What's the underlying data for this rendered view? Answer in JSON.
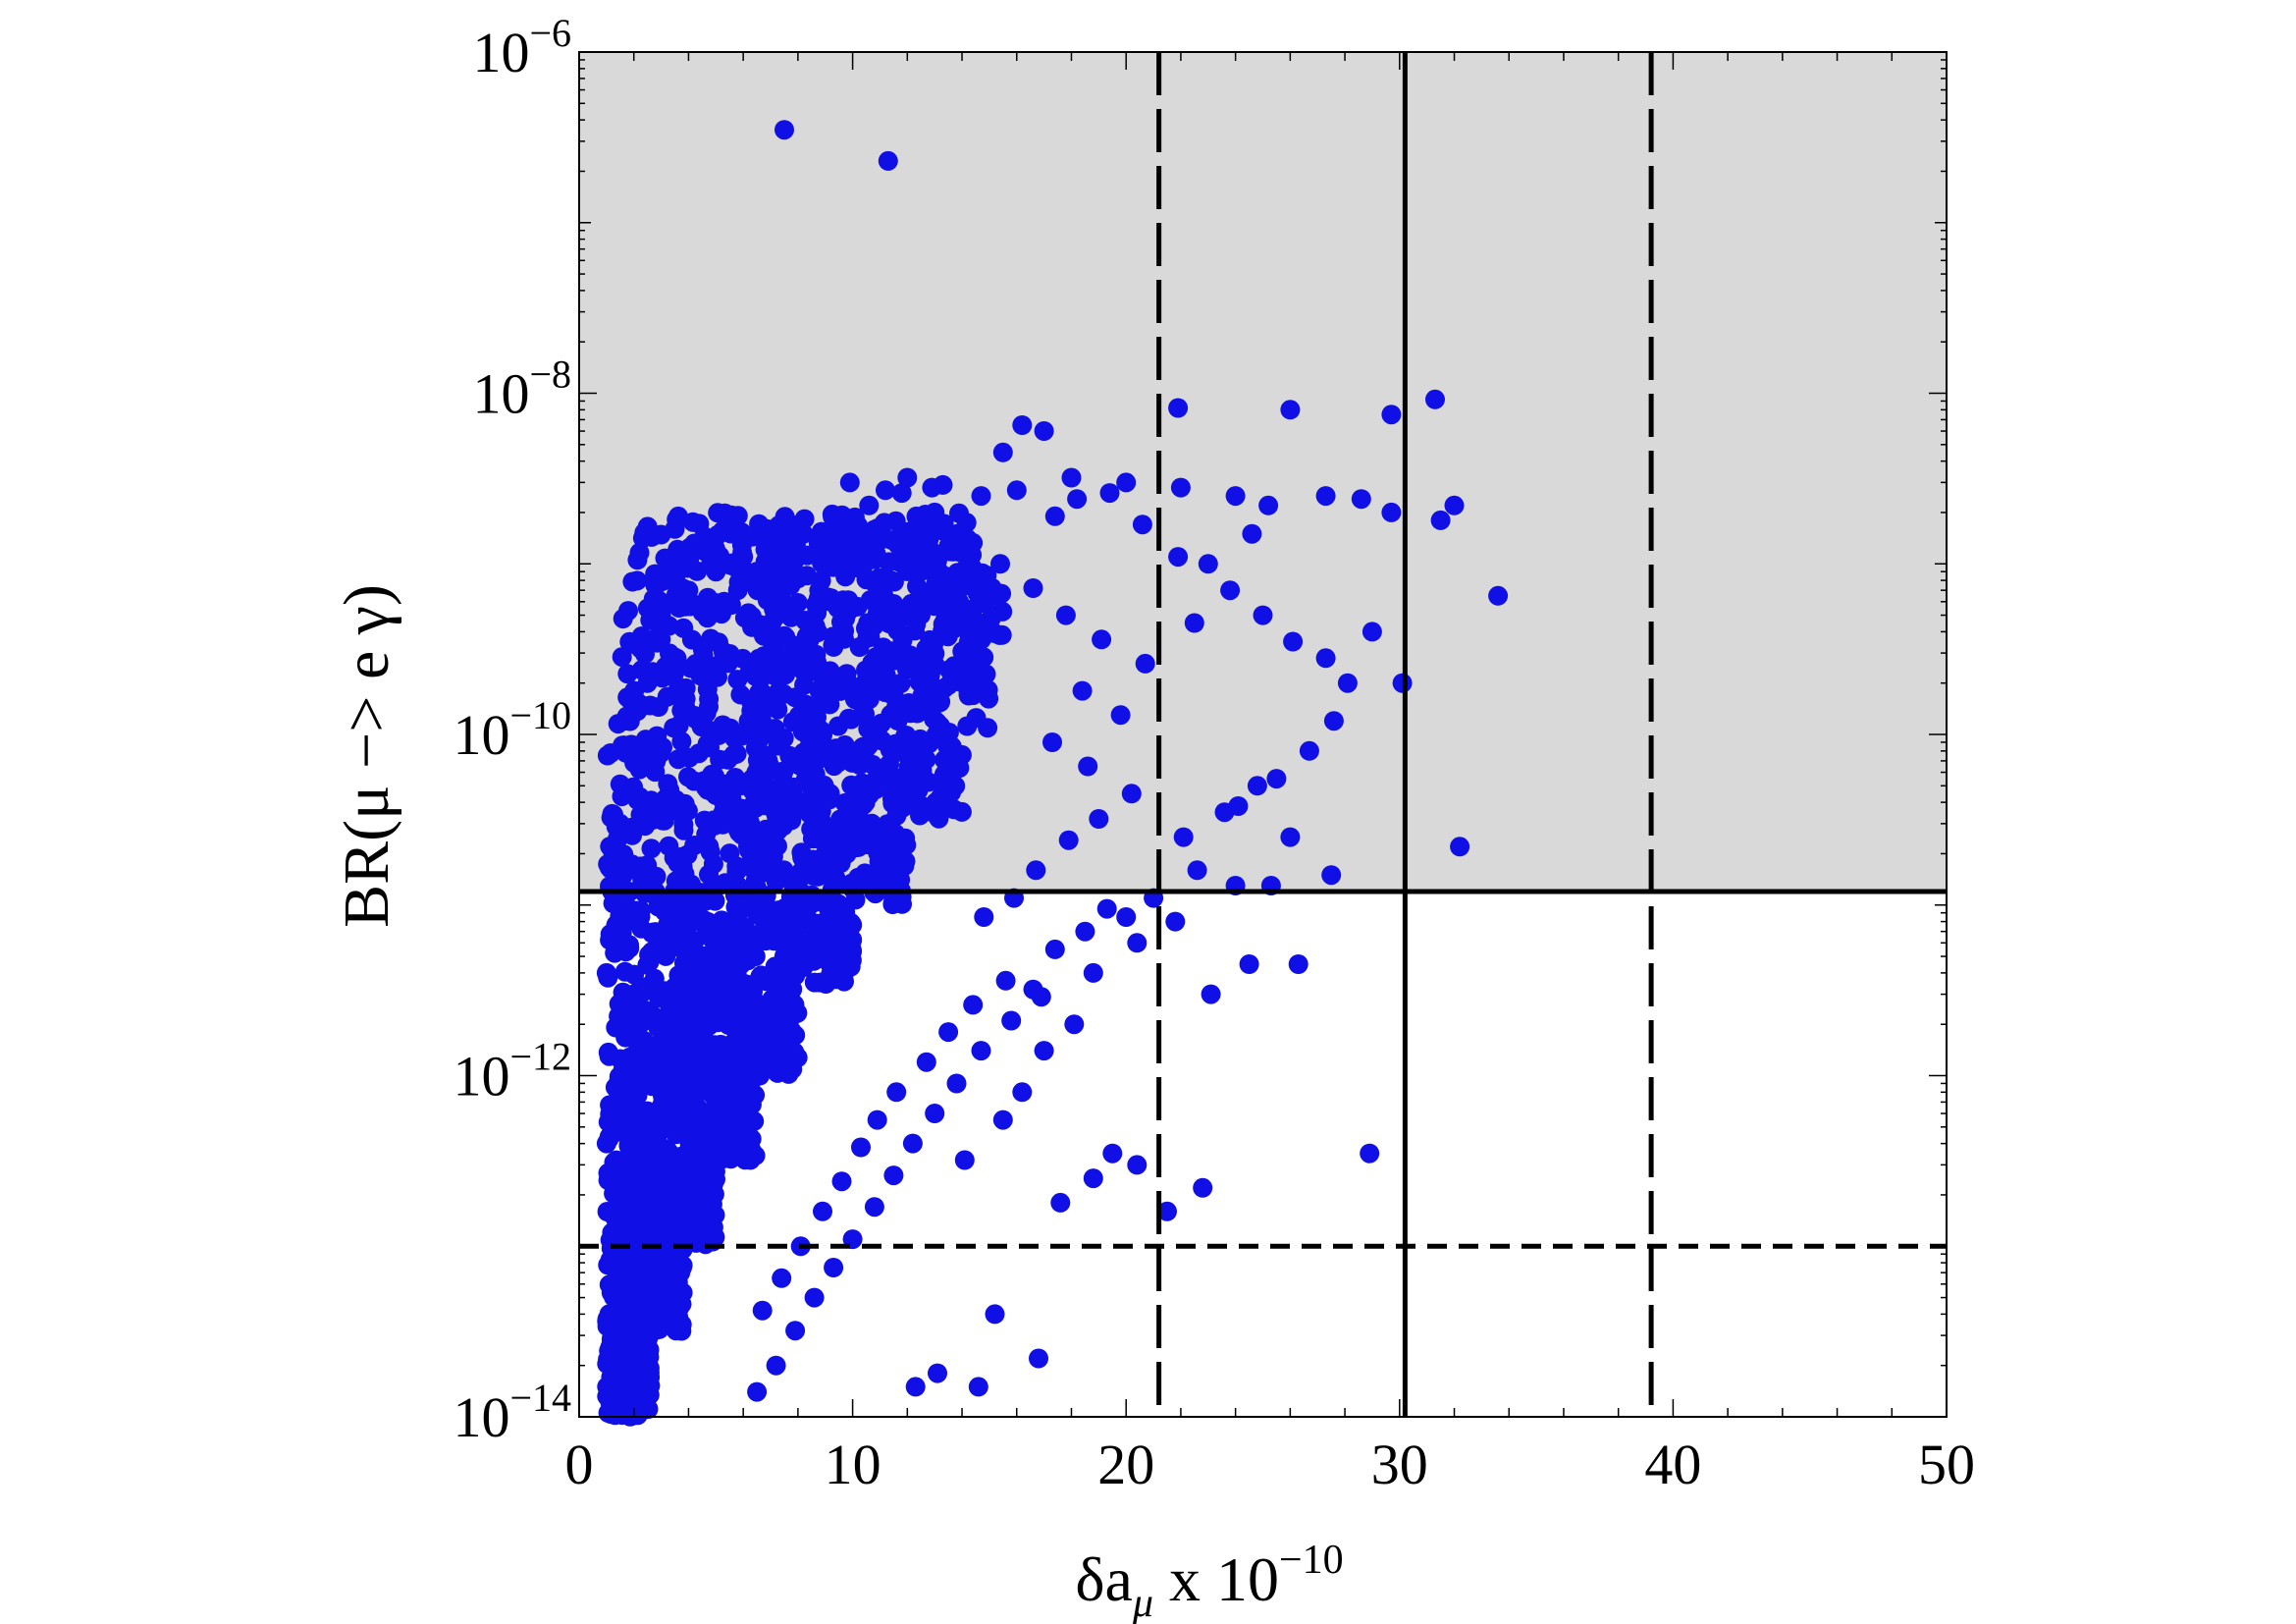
{
  "chart_data": {
    "type": "scatter",
    "title": "",
    "xlabel": {
      "main": "δa",
      "sub": "μ",
      "rest": " x 10",
      "sup": "−10"
    },
    "ylabel": "BR(μ −> e γ)",
    "xlim": [
      0,
      50
    ],
    "ylim": [
      1e-14,
      1e-06
    ],
    "yscale": "log",
    "grid": false,
    "legend": "none",
    "x_ticks": [
      {
        "value": 0,
        "label": "0"
      },
      {
        "value": 10,
        "label": "10"
      },
      {
        "value": 20,
        "label": "20"
      },
      {
        "value": 30,
        "label": "30"
      },
      {
        "value": 40,
        "label": "40"
      },
      {
        "value": 50,
        "label": "50"
      }
    ],
    "y_ticks": [
      {
        "value": 1e-06,
        "base": "10",
        "exp": "−6"
      },
      {
        "value": 1e-08,
        "base": "10",
        "exp": "−8"
      },
      {
        "value": 1e-10,
        "base": "10",
        "exp": "−10"
      },
      {
        "value": 1e-12,
        "base": "10",
        "exp": "−12"
      },
      {
        "value": 1e-14,
        "base": "10",
        "exp": "−14"
      }
    ],
    "excluded_region": {
      "y_min": 1.2e-11,
      "y_max": 1e-06,
      "color": "#d9d9d9"
    },
    "reference_lines": [
      {
        "orientation": "horizontal",
        "value": 1.2e-11,
        "style": "solid"
      },
      {
        "orientation": "horizontal",
        "value": 1e-13,
        "style": "short-dash"
      },
      {
        "orientation": "vertical",
        "value": 21.2,
        "style": "long-dash"
      },
      {
        "orientation": "vertical",
        "value": 30.2,
        "style": "solid"
      },
      {
        "orientation": "vertical",
        "value": 39.2,
        "style": "long-dash"
      }
    ],
    "series": [
      {
        "color": "#1010e6",
        "points": [
          [
            7.5,
            3.5e-07
          ],
          [
            11.3,
            2.3e-07
          ],
          [
            16.2,
            6.5e-09
          ],
          [
            17.0,
            6e-09
          ],
          [
            21.9,
            8.2e-09
          ],
          [
            26.0,
            8e-09
          ],
          [
            29.7,
            7.5e-09
          ],
          [
            31.3,
            9.2e-09
          ],
          [
            15.5,
            4.5e-09
          ],
          [
            18.0,
            3.2e-09
          ],
          [
            20.0,
            3e-09
          ],
          [
            22.0,
            2.8e-09
          ],
          [
            24.0,
            2.5e-09
          ],
          [
            25.2,
            2.2e-09
          ],
          [
            27.3,
            2.5e-09
          ],
          [
            29.7,
            2e-09
          ],
          [
            31.5,
            1.8e-09
          ],
          [
            32.0,
            2.2e-09
          ],
          [
            33.6,
            6.5e-10
          ],
          [
            30.1,
            2e-10
          ],
          [
            32.2,
            2.2e-11
          ],
          [
            28.9,
            3.5e-13
          ],
          [
            27.5,
            1.5e-11
          ],
          [
            25.3,
            1.3e-11
          ],
          [
            26.3,
            4.5e-12
          ],
          [
            24.5,
            4.5e-12
          ],
          [
            23.1,
            3e-12
          ],
          [
            21.5,
            1.6e-13
          ],
          [
            22.8,
            2.2e-13
          ],
          [
            20.4,
            3e-13
          ],
          [
            19.5,
            3.5e-13
          ],
          [
            18.8,
            2.5e-13
          ],
          [
            17.6,
            1.8e-13
          ],
          [
            16.8,
            2.2e-14
          ],
          [
            15.2,
            4e-14
          ],
          [
            14.6,
            1.5e-14
          ],
          [
            13.1,
            1.8e-14
          ],
          [
            12.3,
            1.5e-14
          ],
          [
            18.8,
            4e-12
          ],
          [
            20.4,
            6e-12
          ],
          [
            19.3,
            9.5e-12
          ],
          [
            21.8,
            8e-12
          ],
          [
            24.0,
            1.3e-11
          ],
          [
            22.1,
            2.5e-11
          ],
          [
            23.6,
            3.5e-11
          ],
          [
            24.8,
            5e-11
          ],
          [
            26.7,
            8e-11
          ],
          [
            27.6,
            1.2e-10
          ],
          [
            28.1,
            2e-10
          ],
          [
            29.0,
            4e-10
          ],
          [
            27.3,
            2.8e-10
          ],
          [
            26.1,
            3.5e-10
          ],
          [
            25.0,
            5e-10
          ],
          [
            23.8,
            7e-10
          ],
          [
            22.5,
            4.5e-10
          ],
          [
            21.9,
            1.1e-09
          ],
          [
            23.0,
            1e-09
          ],
          [
            24.6,
            1.5e-09
          ],
          [
            20.6,
            1.7e-09
          ],
          [
            19.4,
            2.6e-09
          ],
          [
            18.2,
            2.4e-09
          ],
          [
            17.4,
            1.9e-09
          ],
          [
            28.6,
            2.4e-09
          ],
          [
            24.1,
            3.8e-11
          ],
          [
            25.5,
            5.5e-11
          ],
          [
            26.0,
            2.5e-11
          ],
          [
            22.6,
            1.6e-11
          ],
          [
            21.0,
            1.1e-11
          ],
          [
            20.0,
            8.5e-12
          ],
          [
            18.5,
            7e-12
          ],
          [
            17.4,
            5.5e-12
          ],
          [
            16.6,
            3.2e-12
          ],
          [
            15.8,
            2.1e-12
          ],
          [
            14.7,
            1.4e-12
          ],
          [
            13.8,
            9e-13
          ],
          [
            13.0,
            6e-13
          ],
          [
            12.2,
            4e-13
          ],
          [
            11.5,
            2.6e-13
          ],
          [
            10.8,
            1.7e-13
          ],
          [
            10.0,
            1.1e-13
          ],
          [
            9.3,
            7.5e-14
          ],
          [
            8.6,
            5e-14
          ],
          [
            7.9,
            3.2e-14
          ],
          [
            7.2,
            2e-14
          ],
          [
            6.5,
            1.4e-14
          ],
          [
            15.5,
            5.5e-13
          ],
          [
            14.1,
            3.2e-13
          ],
          [
            16.2,
            8e-13
          ],
          [
            17.0,
            1.4e-12
          ],
          [
            18.1,
            2e-12
          ],
          [
            16.9,
            2.9e-12
          ],
          [
            15.6,
            3.6e-12
          ],
          [
            14.4,
            2.6e-12
          ],
          [
            13.5,
            1.8e-12
          ],
          [
            12.7,
            1.2e-12
          ],
          [
            11.6,
            8e-13
          ],
          [
            10.9,
            5.5e-13
          ],
          [
            10.3,
            3.8e-13
          ],
          [
            9.6,
            2.4e-13
          ],
          [
            8.9,
            1.6e-13
          ],
          [
            8.1,
            1e-13
          ],
          [
            7.4,
            6.5e-14
          ],
          [
            6.7,
            4.2e-14
          ],
          [
            14.8,
            8.5e-12
          ],
          [
            15.9,
            1.1e-11
          ],
          [
            16.7,
            1.6e-11
          ],
          [
            17.9,
            2.4e-11
          ],
          [
            19.0,
            3.2e-11
          ],
          [
            20.2,
            4.5e-11
          ],
          [
            18.6,
            6.5e-11
          ],
          [
            17.3,
            9e-11
          ],
          [
            19.8,
            1.3e-10
          ],
          [
            18.4,
            1.8e-10
          ],
          [
            20.7,
            2.6e-10
          ],
          [
            19.1,
            3.6e-10
          ],
          [
            17.8,
            5e-10
          ],
          [
            16.6,
            7.2e-10
          ],
          [
            15.4,
            1e-09
          ],
          [
            14.2,
            1.4e-09
          ],
          [
            13.0,
            2e-09
          ],
          [
            11.8,
            2.6e-09
          ],
          [
            10.6,
            2.2e-09
          ],
          [
            9.4,
            1.8e-09
          ],
          [
            8.2,
            1.5e-09
          ],
          [
            7.0,
            1.3e-09
          ],
          [
            6.0,
            1.1e-09
          ],
          [
            5.0,
            9e-10
          ],
          [
            4.0,
            7e-10
          ],
          [
            3.0,
            5e-10
          ],
          [
            3.5,
            1.6e-09
          ],
          [
            2.5,
            2e-10
          ],
          [
            2.0,
            8e-11
          ],
          [
            1.5,
            3e-11
          ],
          [
            1.2,
            1.2e-11
          ],
          [
            1.0,
            4e-12
          ],
          [
            1.1,
            1.3e-12
          ],
          [
            1.0,
            4e-13
          ],
          [
            1.2,
            1.2e-13
          ],
          [
            1.1,
            4e-14
          ],
          [
            12.9,
            2.8e-09
          ],
          [
            12.0,
            3.2e-09
          ],
          [
            13.3,
            2.9e-09
          ],
          [
            9.9,
            3e-09
          ],
          [
            11.2,
            2.7e-09
          ],
          [
            14.7,
            2.5e-09
          ],
          [
            16.0,
            2.7e-09
          ]
        ]
      }
    ]
  }
}
